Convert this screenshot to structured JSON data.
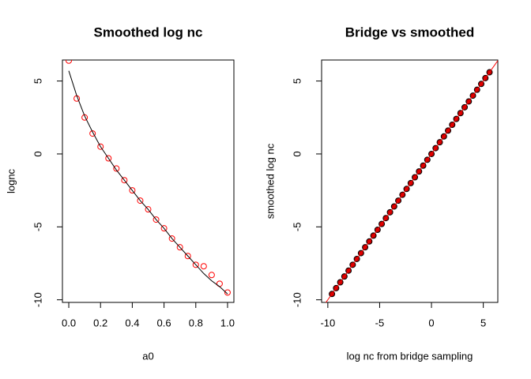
{
  "chart_data": [
    {
      "type": "scatter",
      "title": "Smoothed log nc",
      "x_label": "a0",
      "y_label": "lognc",
      "xlim": [
        -0.04,
        1.04
      ],
      "ylim": [
        -10.18,
        6.44
      ],
      "xticks": [
        {
          "value": 0,
          "label": "0.0"
        },
        {
          "value": 0.2,
          "label": "0.2"
        },
        {
          "value": 0.4,
          "label": "0.4"
        },
        {
          "value": 0.6,
          "label": "0.6"
        },
        {
          "value": 0.8,
          "label": "0.8"
        },
        {
          "value": 1,
          "label": "1.0"
        }
      ],
      "yticks": [
        -10,
        -5,
        0,
        5
      ],
      "series": [
        {
          "type": "points",
          "color": "#ff0000",
          "x": [
            0,
            0.05,
            0.1,
            0.15,
            0.2,
            0.25,
            0.3,
            0.35,
            0.4,
            0.45,
            0.5,
            0.55,
            0.6,
            0.65,
            0.7,
            0.75,
            0.8,
            0.85,
            0.9,
            0.95,
            1
          ],
          "values": [
            6.4,
            3.8,
            2.5,
            1.4,
            0.5,
            -0.3,
            -1.0,
            -1.8,
            -2.5,
            -3.2,
            -3.8,
            -4.5,
            -5.1,
            -5.8,
            -6.4,
            -7.0,
            -7.6,
            -7.7,
            -8.3,
            -8.9,
            -9.5
          ]
        },
        {
          "type": "line",
          "color": "#000000",
          "x": [
            0,
            0.05,
            0.1,
            0.15,
            0.2,
            0.25,
            0.3,
            0.35,
            0.4,
            0.45,
            0.5,
            0.55,
            0.6,
            0.65,
            0.7,
            0.75,
            0.8,
            0.85,
            0.9,
            0.95,
            1
          ],
          "values": [
            5.7,
            4.0,
            2.6,
            1.5,
            0.5,
            -0.3,
            -1.1,
            -1.8,
            -2.5,
            -3.2,
            -3.8,
            -4.5,
            -5.1,
            -5.8,
            -6.4,
            -7.0,
            -7.6,
            -8.2,
            -8.7,
            -9.1,
            -9.6
          ]
        }
      ]
    },
    {
      "type": "scatter",
      "title": "Bridge vs smoothed",
      "x_label": "log nc from bridge sampling",
      "y_label": "smoothed log nc",
      "xlim": [
        -10.6,
        6.4
      ],
      "ylim": [
        -10.18,
        6.44
      ],
      "xticks": [
        -10,
        -5,
        0,
        5
      ],
      "yticks": [
        -10,
        -5,
        0,
        5
      ],
      "series": [
        {
          "type": "points",
          "color": "#000000",
          "fill": "#cc0000",
          "x": [
            -9.6,
            -9.2,
            -8.8,
            -8.4,
            -8.0,
            -7.6,
            -7.2,
            -6.8,
            -6.4,
            -6.0,
            -5.6,
            -5.2,
            -4.8,
            -4.4,
            -4.0,
            -3.6,
            -3.2,
            -2.8,
            -2.4,
            -2.0,
            -1.6,
            -1.2,
            -0.8,
            -0.4,
            0.0,
            0.4,
            0.8,
            1.2,
            1.6,
            2.0,
            2.4,
            2.8,
            3.2,
            3.6,
            4.0,
            4.4,
            4.8,
            5.2,
            5.6
          ],
          "values": [
            -9.6,
            -9.2,
            -8.8,
            -8.4,
            -8.0,
            -7.6,
            -7.2,
            -6.8,
            -6.4,
            -6.0,
            -5.6,
            -5.2,
            -4.8,
            -4.4,
            -4.0,
            -3.6,
            -3.2,
            -2.8,
            -2.4,
            -2.0,
            -1.6,
            -1.2,
            -0.8,
            -0.4,
            0.0,
            0.4,
            0.8,
            1.2,
            1.6,
            2.0,
            2.4,
            2.8,
            3.2,
            3.6,
            4.0,
            4.4,
            4.8,
            5.2,
            5.6
          ]
        },
        {
          "type": "abline",
          "color": "#ff0000",
          "intercept": 0,
          "slope": 1
        }
      ]
    }
  ]
}
